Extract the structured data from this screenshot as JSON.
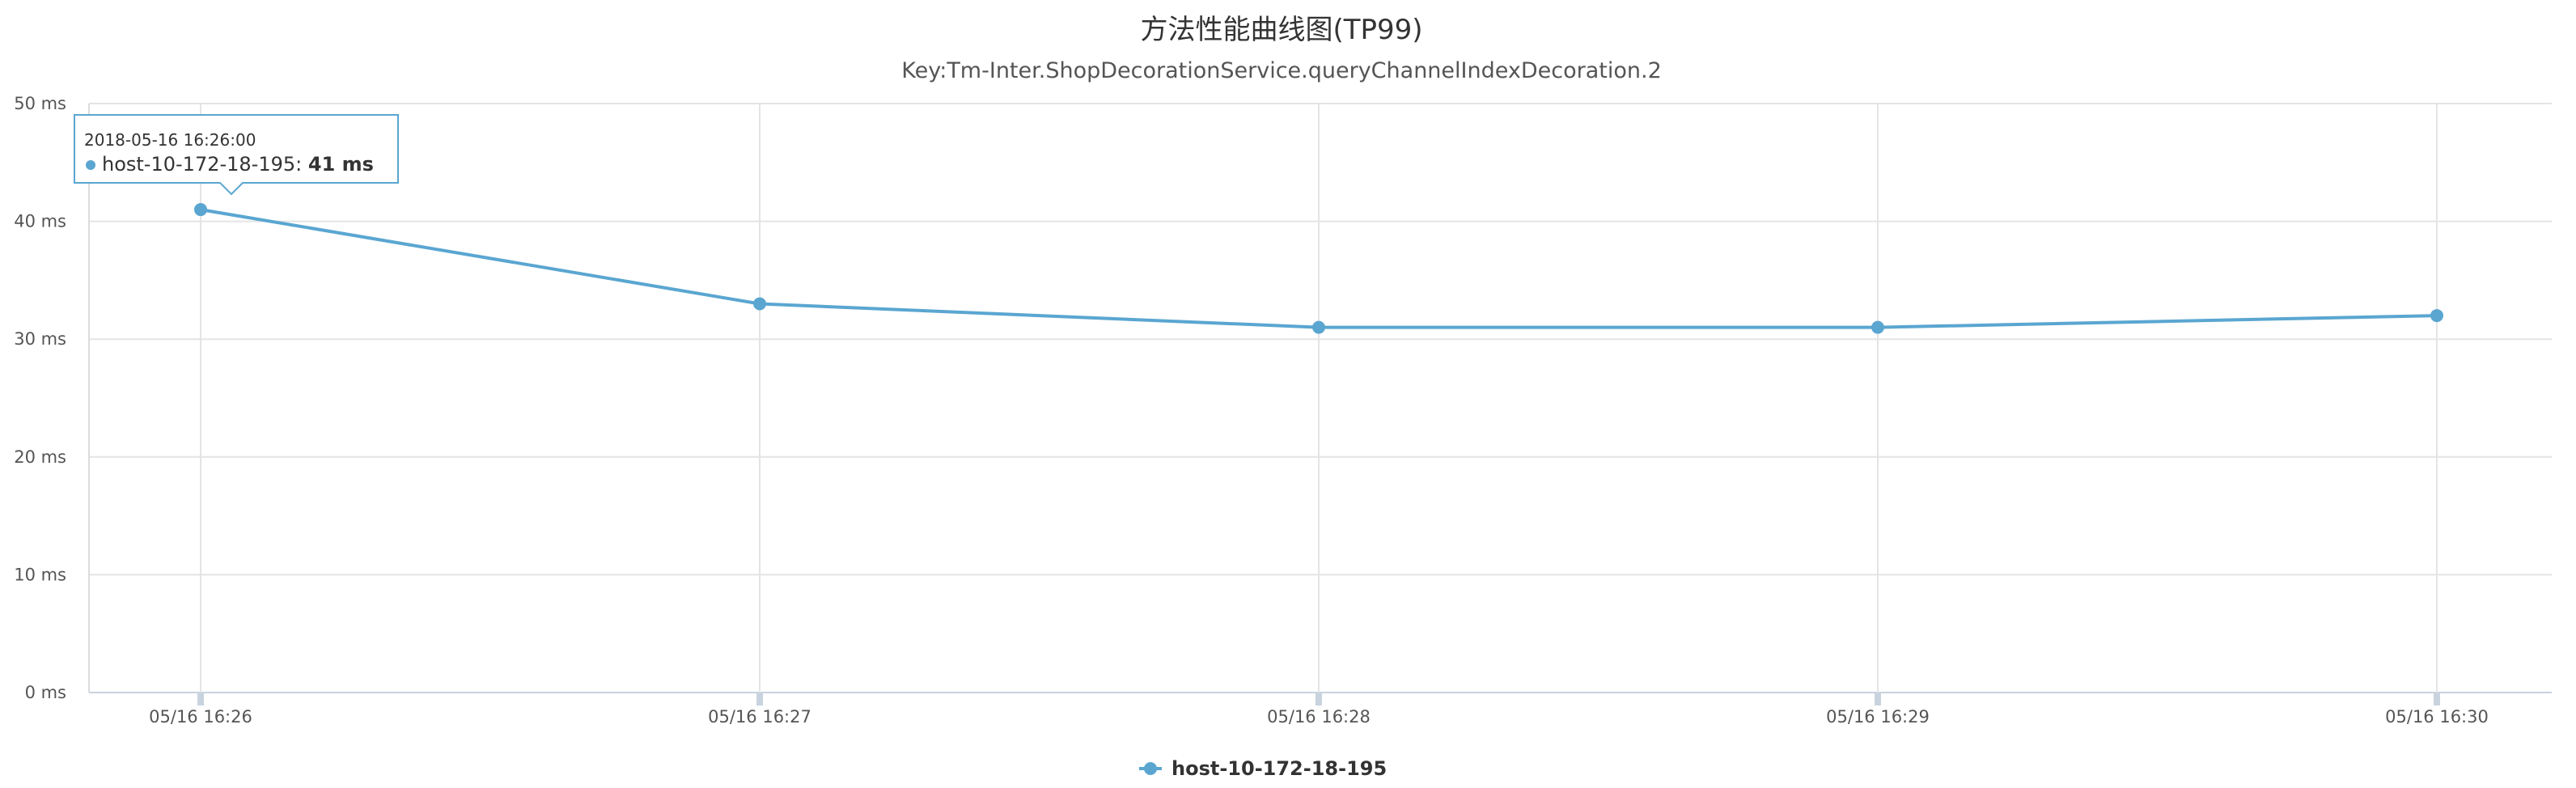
{
  "chart_data": {
    "type": "line",
    "title": "方法性能曲线图(TP99)",
    "subtitle": "Key:Tm-Inter.ShopDecorationService.queryChannelIndexDecoration.2",
    "x": [
      "05/16 16:26",
      "05/16 16:27",
      "05/16 16:28",
      "05/16 16:29",
      "05/16 16:30"
    ],
    "series": [
      {
        "name": "host-10-172-18-195",
        "values": [
          41,
          33,
          31,
          31,
          32
        ],
        "color": "#5aa6d1"
      }
    ],
    "ylim": [
      0,
      50
    ],
    "yticks": [
      0,
      10,
      20,
      30,
      40,
      50
    ],
    "y_unit": "ms",
    "grid": true,
    "legend": "bottom-center",
    "tooltip": {
      "time": "2018-05-16 16:26:00",
      "series": "host-10-172-18-195",
      "value": "41 ms",
      "point_index": 0
    }
  }
}
